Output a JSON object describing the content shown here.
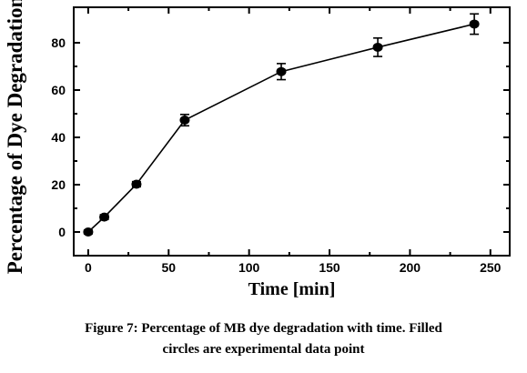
{
  "chart_data": {
    "type": "scatter",
    "title": "",
    "xlabel": "Time [min]",
    "ylabel": "Percentage of Dye Degradation",
    "xlim": [
      -9,
      262
    ],
    "ylim": [
      -10,
      95
    ],
    "x_ticks": [
      0,
      50,
      100,
      150,
      200,
      250
    ],
    "y_ticks": [
      0,
      20,
      40,
      60,
      80
    ],
    "grid": false,
    "legend": "none",
    "series": [
      {
        "marker": "filled-circle",
        "line": "solid",
        "x": [
          0,
          10,
          30,
          60,
          120,
          180,
          240
        ],
        "y": [
          0,
          6.3,
          20.2,
          47.3,
          67.8,
          78.1,
          87.9
        ],
        "error": [
          0.8,
          1.0,
          1.1,
          2.4,
          3.4,
          3.9,
          4.3
        ]
      }
    ]
  },
  "caption": {
    "label": "Figure 7:",
    "line1": "Percentage of MB dye degradation with time. Filled",
    "line2": "circles are experimental data point"
  }
}
